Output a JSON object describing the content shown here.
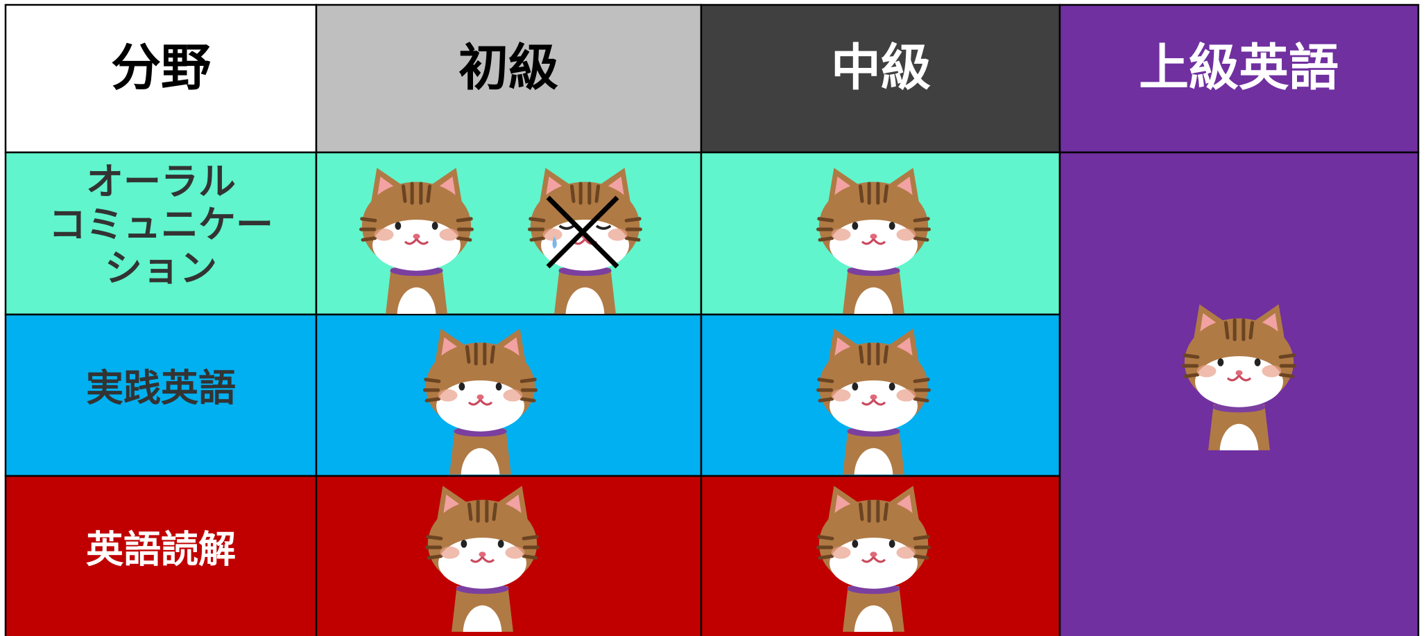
{
  "table": {
    "header": [
      "分野",
      "初級",
      "中級",
      "上級英語"
    ],
    "rows": [
      {
        "label": [
          "オーラル",
          "コミュニケー",
          "ション"
        ]
      },
      {
        "label": [
          "実践英語"
        ]
      },
      {
        "label": [
          "英語読解"
        ]
      }
    ]
  }
}
